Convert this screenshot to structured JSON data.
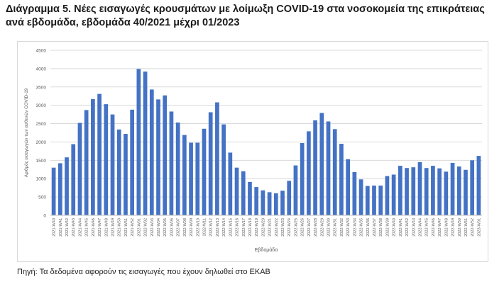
{
  "title_line1": "Διάγραμμα 5. Νέες εισαγωγές κρουσμάτων με λοίμωξη COVID-19 στα νοσοκομεία της επικράτειας",
  "title_line2": "ανά εβδομάδα, εβδομάδα 40/2021 μέχρι 01/2023",
  "source_note": "Πηγή: Τα δεδομένα αφορούν τις εισαγωγές που έχουν δηλωθεί στο ΕΚΑΒ",
  "chart_data": {
    "type": "bar",
    "xlabel": "Εβδομάδα",
    "ylabel": "Αριθμός εισαγωγών των ασθενών COVID-19",
    "ylim": [
      0,
      4500
    ],
    "yticks": [
      0,
      500,
      1000,
      1500,
      2000,
      2500,
      3000,
      3500,
      4000,
      4500
    ],
    "grid": true,
    "bar_color": "#4472c4",
    "categories": [
      "2021-W40",
      "2021-W41",
      "2021-W42",
      "2021-W43",
      "2021-W44",
      "2021-W45",
      "2021-W46",
      "2021-W47",
      "2021-W48",
      "2021-W49",
      "2021-W50",
      "2021-W51",
      "2021-W52",
      "2022-W01",
      "2022-W02",
      "2022-W03",
      "2022-W04",
      "2022-W05",
      "2022-W06",
      "2022-W07",
      "2022-W08",
      "2022-W09",
      "2022-W10",
      "2022-W11",
      "2022-W12",
      "2022-W13",
      "2022-W14",
      "2022-W15",
      "2022-W16",
      "2022-W17",
      "2022-W18",
      "2022-W19",
      "2022-W20",
      "2022-W21",
      "2022-W22",
      "2022-W23",
      "2022-W24",
      "2022-W25",
      "2022-W26",
      "2022-W27",
      "2022-W28",
      "2022-W29",
      "2022-W30",
      "2022-W31",
      "2022-W32",
      "2022-W33",
      "2022-W34",
      "2022-W35",
      "2022-W36",
      "2022-W37",
      "2022-W38",
      "2022-W39",
      "2022-W40",
      "2022-W41",
      "2022-W42",
      "2022-W43",
      "2022-W44",
      "2022-W45",
      "2022-W46",
      "2022-W47",
      "2022-W48",
      "2022-W49",
      "2022-W50",
      "2022-W51",
      "2022-W52",
      "2023-W01"
    ],
    "values": [
      1300,
      1420,
      1580,
      1940,
      2520,
      2870,
      3170,
      3310,
      3030,
      2750,
      2340,
      2220,
      2880,
      3990,
      3920,
      3430,
      3160,
      3270,
      2830,
      2530,
      2190,
      1980,
      1980,
      2360,
      2810,
      3080,
      2480,
      1710,
      1300,
      1200,
      910,
      770,
      680,
      630,
      600,
      670,
      940,
      1360,
      1970,
      2290,
      2590,
      2790,
      2560,
      2350,
      1950,
      1530,
      1180,
      980,
      800,
      810,
      810,
      1070,
      1110,
      1350,
      1290,
      1310,
      1450,
      1290,
      1350,
      1280,
      1190,
      1430,
      1330,
      1240,
      1500,
      1620
    ]
  }
}
